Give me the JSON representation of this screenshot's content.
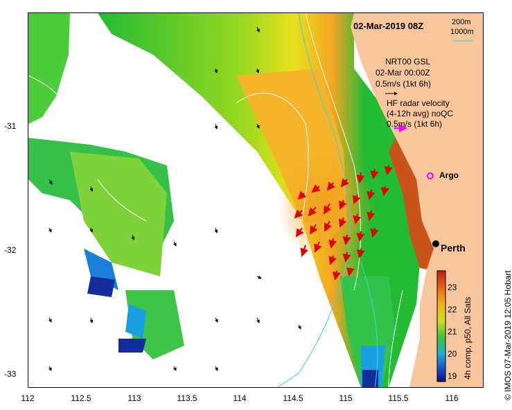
{
  "map": {
    "title": "02-Mar-2019 08Z",
    "depth_labels": [
      "200m",
      "1000m"
    ],
    "legend_model": [
      "NRT00 GSL",
      "02-Mar 00:00Z",
      "0.5m/s (1kt 6h)"
    ],
    "legend_radar": [
      "HF radar velocity",
      "(4-12h avg) noQC",
      "0.5m/s (1kt 6h)"
    ],
    "argo_label": "Argo",
    "city_label": "Perth",
    "credit": "© IMOS 07-Mar-2019 12:05 Hobart",
    "x_ticks": [
      "112",
      "112.5",
      "113",
      "113.5",
      "114",
      "114.5",
      "115",
      "115.5",
      "116"
    ],
    "y_ticks": [
      "-31",
      "-32",
      "-33"
    ],
    "colorbar": {
      "caption": "4h comp, p50, All Sats",
      "ticks": [
        "23",
        "22",
        "21",
        "20",
        "19"
      ]
    },
    "colors": {
      "land": "#f8c69c",
      "contour_200m": "#ffffff",
      "contour_1000m": "#33d6e0",
      "radar_arrow": "#ff00ff",
      "argo": "#ff00ff"
    }
  }
}
